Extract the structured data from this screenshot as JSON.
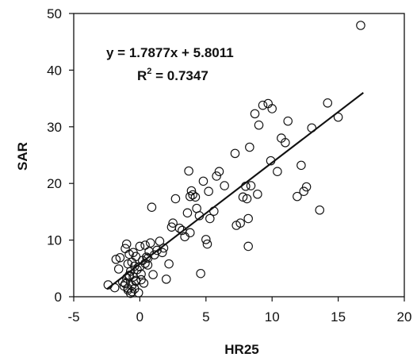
{
  "chart_data": {
    "type": "scatter",
    "title": "",
    "xlabel": "HR25",
    "ylabel": "SAR",
    "xlim": [
      -5,
      20
    ],
    "ylim": [
      0,
      50
    ],
    "xticks": [
      "-5",
      "0",
      "5",
      "10",
      "15",
      "20"
    ],
    "yticks": [
      "0",
      "10",
      "20",
      "30",
      "40",
      "50"
    ],
    "grid": false,
    "legend": "none",
    "annotations": {
      "equation": "y = 1.7877x + 5.8011",
      "r2_prefix": "R",
      "r2_sup": "2",
      "r2_value": " = 0.7347"
    },
    "trendline": {
      "slope": 1.7877,
      "intercept": 5.8011,
      "x_range": [
        -2.5,
        16.9
      ]
    },
    "series": [
      {
        "marker": "open-circle",
        "color": "#111111",
        "x": [
          -2.4,
          -1.9,
          -1.8,
          -1.6,
          -1.5,
          -1.3,
          -1.2,
          -1.1,
          -1.0,
          -1.0,
          -0.9,
          -0.9,
          -0.8,
          -0.8,
          -0.7,
          -0.7,
          -0.6,
          -0.6,
          -0.5,
          -0.5,
          -0.4,
          -0.4,
          -0.3,
          -0.3,
          -0.2,
          -0.1,
          0.0,
          0.0,
          0.1,
          0.2,
          0.3,
          0.4,
          0.5,
          0.6,
          0.7,
          0.8,
          0.9,
          1.0,
          1.1,
          1.3,
          1.5,
          1.7,
          1.8,
          2.0,
          2.2,
          2.4,
          2.7,
          3.0,
          3.2,
          3.4,
          3.6,
          3.7,
          3.8,
          3.9,
          4.0,
          4.2,
          4.3,
          4.5,
          4.6,
          4.8,
          5.0,
          5.1,
          5.2,
          5.3,
          5.6,
          5.8,
          6.0,
          6.4,
          7.2,
          7.3,
          7.6,
          7.8,
          8.0,
          8.1,
          8.2,
          8.3,
          8.4,
          8.7,
          8.9,
          9.0,
          9.3,
          9.7,
          9.9,
          10.0,
          10.4,
          10.7,
          11.0,
          11.2,
          11.9,
          12.2,
          12.4,
          12.6,
          13.0,
          13.6,
          14.2,
          15.0,
          16.7,
          -0.9,
          -0.6,
          -0.3,
          0.1,
          0.4,
          -1.1,
          -0.8,
          0.6,
          8.2,
          3.8,
          2.5
        ],
        "y": [
          2.1,
          1.6,
          6.6,
          4.9,
          6.9,
          2.6,
          1.9,
          8.5,
          9.3,
          3.3,
          5.8,
          1.2,
          3.8,
          7.5,
          0.6,
          4.5,
          2.0,
          6.1,
          3.5,
          7.8,
          1.4,
          5.4,
          2.7,
          7.1,
          4.8,
          0.7,
          8.9,
          5.3,
          3.0,
          6.4,
          2.4,
          9.1,
          7.0,
          5.6,
          8.0,
          9.5,
          15.8,
          3.9,
          7.4,
          8.2,
          9.8,
          7.8,
          8.6,
          3.1,
          5.8,
          12.3,
          17.3,
          12.1,
          11.7,
          10.6,
          14.8,
          22.2,
          17.7,
          18.7,
          18.0,
          17.6,
          15.6,
          14.3,
          4.1,
          20.4,
          10.1,
          9.3,
          18.6,
          13.8,
          15.1,
          21.3,
          22.1,
          19.6,
          25.3,
          12.6,
          13.0,
          17.6,
          19.5,
          17.3,
          13.8,
          26.4,
          19.6,
          32.3,
          18.1,
          30.3,
          33.8,
          34.1,
          24.0,
          33.2,
          22.1,
          28.0,
          27.2,
          31.0,
          17.7,
          23.2,
          18.6,
          19.4,
          29.8,
          15.3,
          34.2,
          31.7,
          47.9,
          1.5,
          0.9,
          2.9,
          4.0,
          5.9,
          2.3,
          3.6,
          6.8,
          8.9,
          11.3,
          13.0
        ]
      }
    ]
  }
}
